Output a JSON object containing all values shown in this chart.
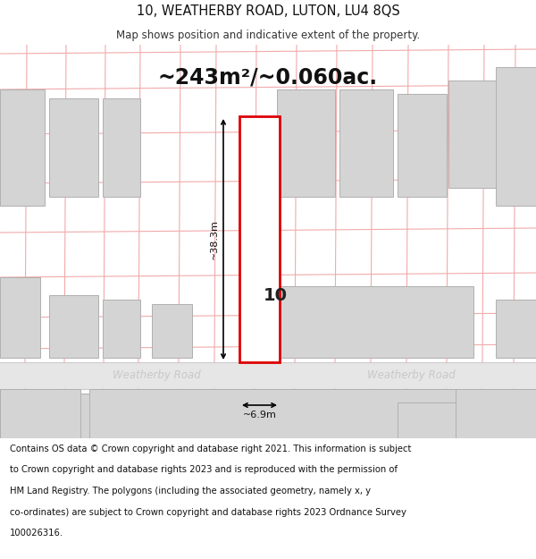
{
  "title": "10, WEATHERBY ROAD, LUTON, LU4 8QS",
  "subtitle": "Map shows position and indicative extent of the property.",
  "area_text": "~243m²/~0.060ac.",
  "dim_height": "~38.3m",
  "dim_width": "~6.9m",
  "road_label1": "Weatherby Road",
  "road_label2": "Weatherby Road",
  "plot_label": "10",
  "footer_line1": "Contains OS data © Crown copyright and database right 2021. This information is subject",
  "footer_line2": "to Crown copyright and database rights 2023 and is reproduced with the permission of",
  "footer_line3": "HM Land Registry. The polygons (including the associated geometry, namely x, y",
  "footer_line4": "co-ordinates) are subject to Crown copyright and database rights 2023 Ordnance Survey",
  "footer_line5": "100026316.",
  "bg_color": "#ffffff",
  "map_bg": "#f9f9f9",
  "road_fill": "#e6e6e6",
  "road_border": "#cccccc",
  "plot_red": "#dd0000",
  "cad_pink": "#f2aaaa",
  "building_fill": "#d4d4d4",
  "building_edge": "#b0b0b0",
  "road_text": "#c8c8c8",
  "title_fs": 10.5,
  "subtitle_fs": 8.5,
  "area_fs": 17,
  "label_fs": 14,
  "dim_fs": 8,
  "road_fs": 8.5,
  "footer_fs": 7.2
}
